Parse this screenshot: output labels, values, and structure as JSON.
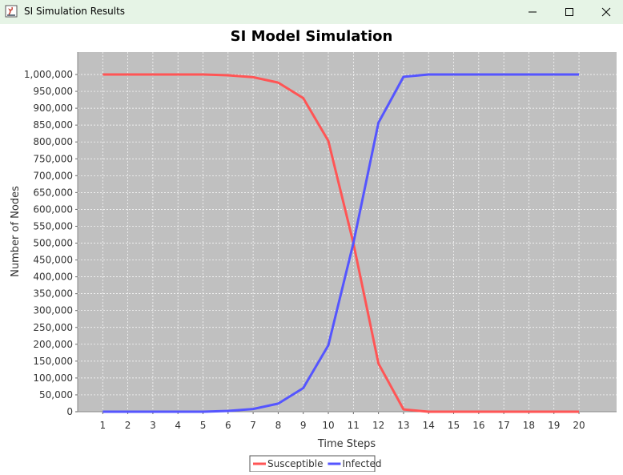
{
  "window": {
    "title": "SI Simulation Results",
    "controls": {
      "minimize": "minimize",
      "maximize": "maximize",
      "close": "close"
    }
  },
  "colors": {
    "plot_background": "#c0c0c0",
    "gridline": "#ffffff",
    "susceptible": "#ff5555",
    "infected": "#5555ff",
    "titlebar": "#e6f4e6"
  },
  "chart_data": {
    "type": "line",
    "title": "SI Model Simulation",
    "xlabel": "Time Steps",
    "ylabel": "Number of Nodes",
    "x": [
      1,
      2,
      3,
      4,
      5,
      6,
      7,
      8,
      9,
      10,
      11,
      12,
      13,
      14,
      15,
      16,
      17,
      18,
      19,
      20
    ],
    "xlim": [
      0,
      21.5
    ],
    "ylim": [
      0,
      1000000
    ],
    "yticks": [
      0,
      50000,
      100000,
      150000,
      200000,
      250000,
      300000,
      350000,
      400000,
      450000,
      500000,
      550000,
      600000,
      650000,
      700000,
      750000,
      800000,
      850000,
      900000,
      950000,
      1000000
    ],
    "ytick_labels": [
      "0",
      "50,000",
      "100,000",
      "150,000",
      "200,000",
      "250,000",
      "300,000",
      "350,000",
      "400,000",
      "450,000",
      "500,000",
      "550,000",
      "600,000",
      "650,000",
      "700,000",
      "750,000",
      "800,000",
      "850,000",
      "900,000",
      "950,000",
      "1,000,000"
    ],
    "grid": true,
    "legend_position": "bottom-center",
    "series": [
      {
        "name": "Susceptible",
        "color": "#ff5555",
        "values": [
          999999,
          999997,
          999990,
          999970,
          999910,
          997700,
          992000,
          976000,
          930000,
          803000,
          500000,
          143000,
          7000,
          50,
          0,
          0,
          0,
          0,
          0,
          0
        ]
      },
      {
        "name": "Infected",
        "color": "#5555ff",
        "values": [
          1,
          3,
          10,
          30,
          90,
          2300,
          8000,
          24000,
          70000,
          197000,
          500000,
          857000,
          993000,
          999950,
          1000000,
          1000000,
          1000000,
          1000000,
          1000000,
          1000000
        ]
      }
    ]
  }
}
